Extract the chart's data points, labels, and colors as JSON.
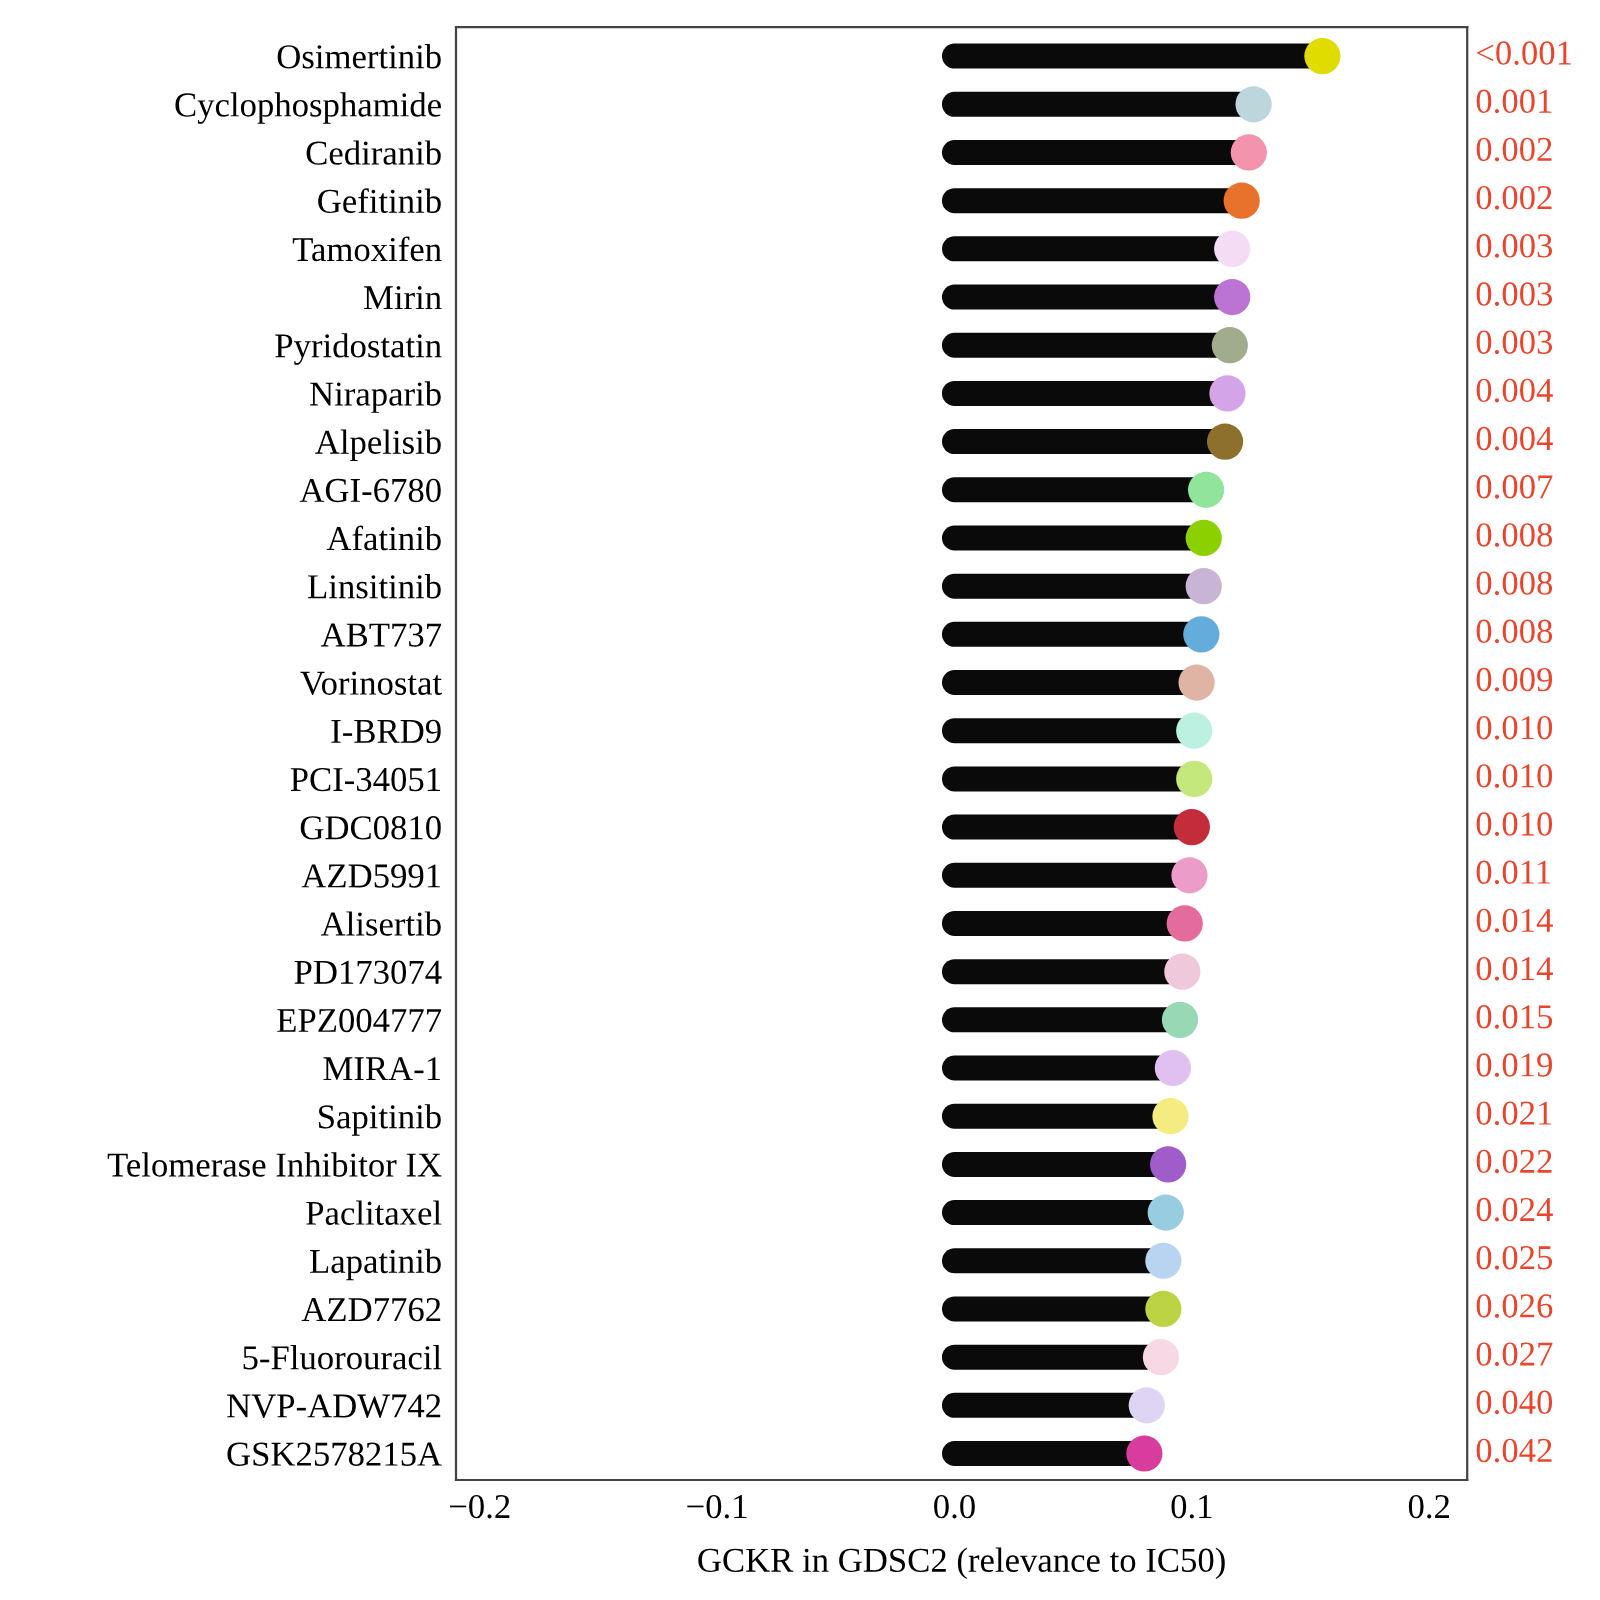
{
  "chart_data": {
    "type": "lollipop",
    "orientation": "horizontal",
    "xlabel": "GCKR in GDSC2 (relevance to IC50)",
    "categories": [
      "Osimertinib",
      "Cyclophosphamide",
      "Cediranib",
      "Gefitinib",
      "Tamoxifen",
      "Mirin",
      "Pyridostatin",
      "Niraparib",
      "Alpelisib",
      "AGI-6780",
      "Afatinib",
      "Linsitinib",
      "ABT737",
      "Vorinostat",
      "I-BRD9",
      "PCI-34051",
      "GDC0810",
      "AZD5991",
      "Alisertib",
      "PD173074",
      "EPZ004777",
      "MIRA-1",
      "Sapitinib",
      "Telomerase Inhibitor IX",
      "Paclitaxel",
      "Lapatinib",
      "AZD7762",
      "5-Fluorouracil",
      "NVP-ADW742",
      "GSK2578215A"
    ],
    "values": [
      0.155,
      0.126,
      0.124,
      0.121,
      0.117,
      0.117,
      0.116,
      0.115,
      0.114,
      0.106,
      0.105,
      0.105,
      0.104,
      0.102,
      0.101,
      0.101,
      0.1,
      0.099,
      0.097,
      0.096,
      0.095,
      0.092,
      0.091,
      0.09,
      0.089,
      0.088,
      0.088,
      0.087,
      0.081,
      0.08
    ],
    "color": "#0a0a0a",
    "colors": [
      "#e0dc00",
      "#bcd6dc",
      "#f494ac",
      "#e8722c",
      "#f4dcf4",
      "#bc74d4",
      "#a0ac8c",
      "#d4a4e8",
      "#8c702c",
      "#90e49c",
      "#8cd000",
      "#c8b4d4",
      "#64acdc",
      "#e0b4a4",
      "#bcf0e0",
      "#c4e87c",
      "#c42c3c",
      "#ec9cc8",
      "#e46c9c",
      "#f0c8dc",
      "#98d8b4",
      "#e0c0f0",
      "#f4ec80",
      "#a05cc8",
      "#98cce0",
      "#b8d4f0",
      "#bcd444",
      "#f8d8e4",
      "#e0d4f4",
      "#d83c9c"
    ],
    "xlim": [
      -0.21,
      0.216
    ],
    "xticks": [
      {
        "value": -0.2,
        "label": "−0.2"
      },
      {
        "value": -0.1,
        "label": "−0.1"
      },
      {
        "value": 0,
        "label": "0.0"
      },
      0.1,
      0.2
    ],
    "grid": false,
    "marker": "circle",
    "annotations": [
      "<0.001",
      "0.001",
      "0.002",
      "0.002",
      "0.003",
      "0.003",
      "0.003",
      "0.004",
      "0.004",
      "0.007",
      "0.008",
      "0.008",
      "0.008",
      "0.009",
      "0.010",
      "0.010",
      "0.010",
      "0.011",
      "0.014",
      "0.014",
      "0.015",
      "0.019",
      "0.021",
      "0.022",
      "0.024",
      "0.025",
      "0.026",
      "0.027",
      "0.040",
      "0.042"
    ]
  }
}
